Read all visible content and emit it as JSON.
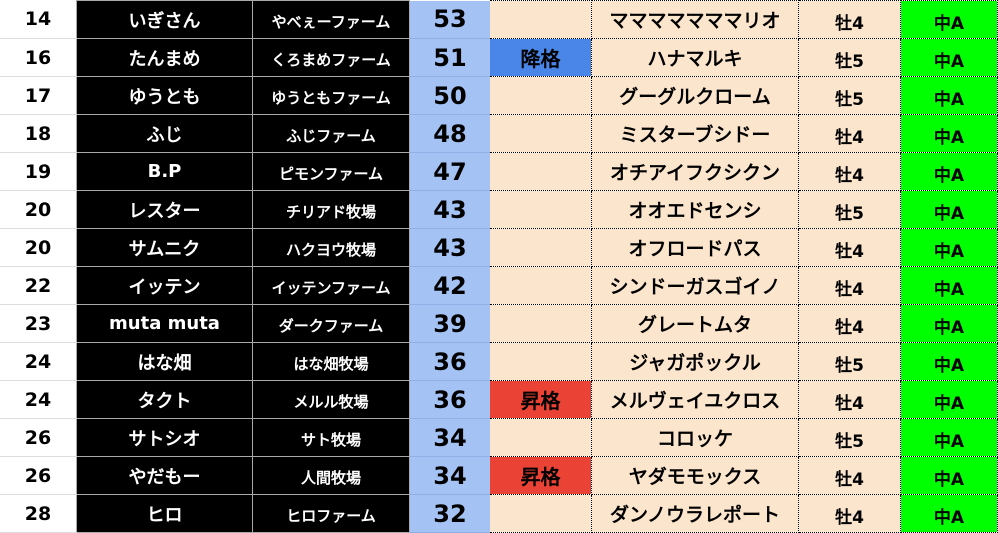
{
  "colors": {
    "score_bg": "#a4c2f4",
    "peach": "#fce5cd",
    "demote": "#4a86e8",
    "promote": "#ea4335",
    "class_bg": "#00ff00"
  },
  "rows": [
    {
      "rank": "14",
      "name": "いぎさん",
      "farm": "やべぇーファーム",
      "score": "53",
      "badge": "",
      "horse": "マママママママリオ",
      "sex": "牡4",
      "class": "中A"
    },
    {
      "rank": "16",
      "name": "たんまめ",
      "farm": "くろまめファーム",
      "score": "51",
      "badge": "降格",
      "badge_type": "down",
      "horse": "ハナマルキ",
      "sex": "牡5",
      "class": "中A"
    },
    {
      "rank": "17",
      "name": "ゆうとも",
      "farm": "ゆうともファーム",
      "score": "50",
      "badge": "",
      "horse": "グーグルクローム",
      "sex": "牡5",
      "class": "中A"
    },
    {
      "rank": "18",
      "name": "ふじ",
      "farm": "ふじファーム",
      "score": "48",
      "badge": "",
      "horse": "ミスターブシドー",
      "sex": "牡4",
      "class": "中A"
    },
    {
      "rank": "19",
      "name": "B.P",
      "farm": "ピモンファーム",
      "score": "47",
      "badge": "",
      "horse": "オチアイフクシクン",
      "sex": "牡4",
      "class": "中A"
    },
    {
      "rank": "20",
      "name": "レスター",
      "farm": "チリアド牧場",
      "score": "43",
      "badge": "",
      "horse": "オオエドセンシ",
      "sex": "牡5",
      "class": "中A"
    },
    {
      "rank": "20",
      "name": "サムニク",
      "farm": "ハクヨウ牧場",
      "score": "43",
      "badge": "",
      "horse": "オフロードパス",
      "sex": "牡4",
      "class": "中A"
    },
    {
      "rank": "22",
      "name": "イッテン",
      "farm": "イッテンファーム",
      "score": "42",
      "badge": "",
      "horse": "シンドーガスゴイノ",
      "sex": "牡4",
      "class": "中A"
    },
    {
      "rank": "23",
      "name": "muta muta",
      "farm": "ダークファーム",
      "score": "39",
      "badge": "",
      "horse": "グレートムタ",
      "sex": "牡4",
      "class": "中A"
    },
    {
      "rank": "24",
      "name": "はな畑",
      "farm": "はな畑牧場",
      "score": "36",
      "badge": "",
      "horse": "ジャガポックル",
      "sex": "牡5",
      "class": "中A"
    },
    {
      "rank": "24",
      "name": "タクト",
      "farm": "メルル牧場",
      "score": "36",
      "badge": "昇格",
      "badge_type": "up",
      "horse": "メルヴェイユクロス",
      "sex": "牡4",
      "class": "中A"
    },
    {
      "rank": "26",
      "name": "サトシオ",
      "farm": "サト牧場",
      "score": "34",
      "badge": "",
      "horse": "コロッケ",
      "sex": "牡5",
      "class": "中A"
    },
    {
      "rank": "26",
      "name": "やだもー",
      "farm": "人間牧場",
      "score": "34",
      "badge": "昇格",
      "badge_type": "up",
      "horse": "ヤダモモックス",
      "sex": "牡4",
      "class": "中A"
    },
    {
      "rank": "28",
      "name": "ヒロ",
      "farm": "ヒロファーム",
      "score": "32",
      "badge": "",
      "horse": "ダンノウラレポート",
      "sex": "牡4",
      "class": "中A"
    }
  ]
}
